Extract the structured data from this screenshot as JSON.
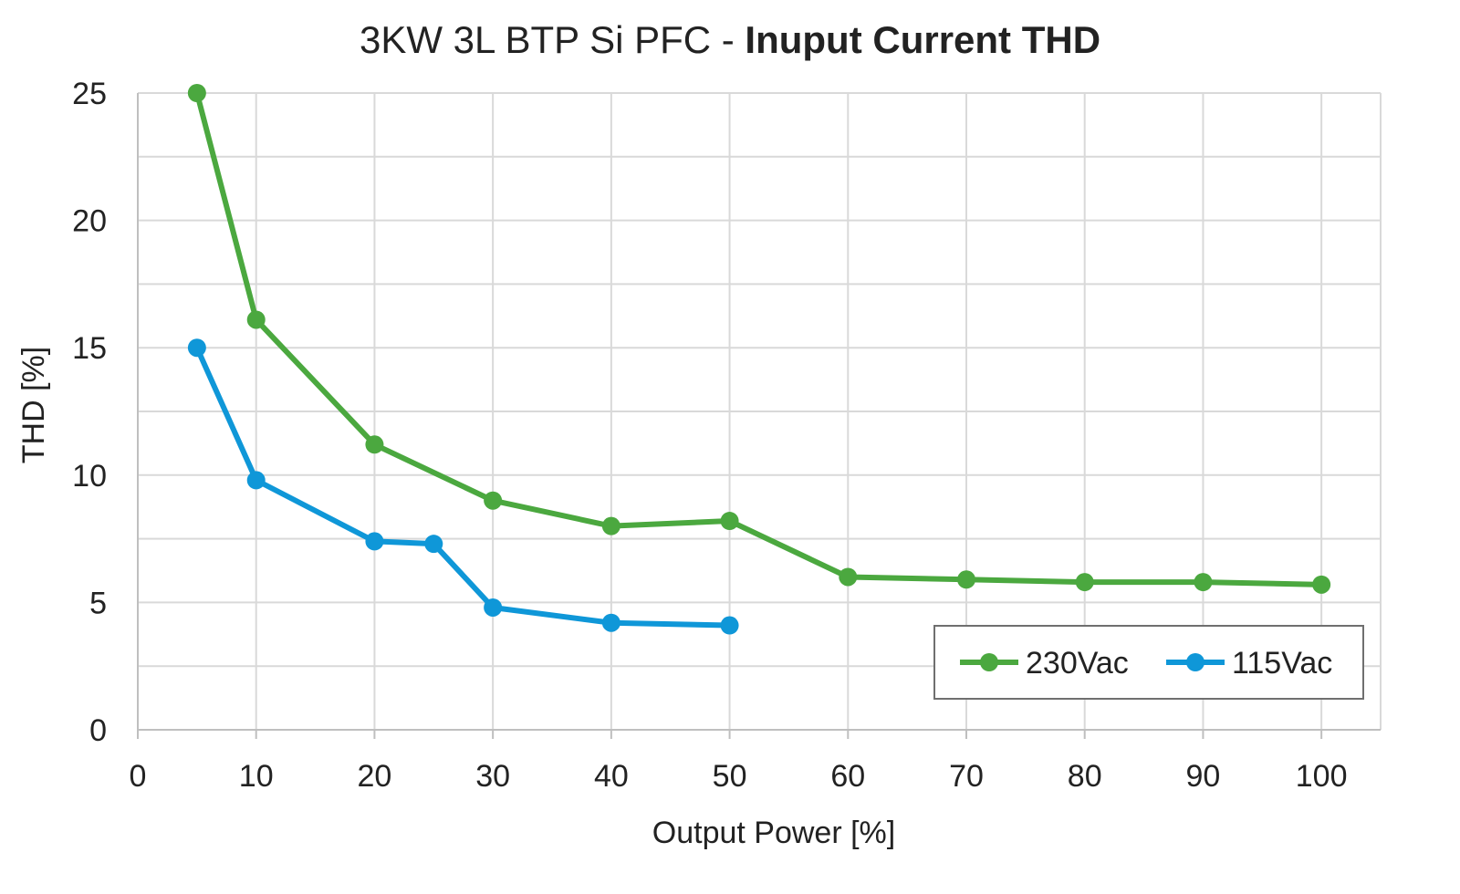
{
  "title": {
    "prefix": "3KW 3L BTP Si PFC - ",
    "main": "Inuput Current THD"
  },
  "chart_data": {
    "type": "line",
    "title": "3KW 3L BTP Si PFC - Inuput Current THD",
    "xlabel": "Output Power [%]",
    "ylabel": "THD [%]",
    "xlim": [
      0,
      105
    ],
    "ylim": [
      0,
      25
    ],
    "x_ticks": [
      0,
      10,
      20,
      30,
      40,
      50,
      60,
      70,
      80,
      90,
      100
    ],
    "y_ticks": [
      0,
      5,
      10,
      15,
      20,
      25
    ],
    "grid": true,
    "legend_position": "bottom-right",
    "series": [
      {
        "name": "230Vac",
        "color": "#4ba83f",
        "x": [
          5,
          10,
          20,
          30,
          40,
          50,
          60,
          70,
          80,
          90,
          100
        ],
        "y": [
          25.0,
          16.1,
          11.2,
          9.0,
          8.0,
          8.2,
          6.0,
          5.9,
          5.8,
          5.8,
          5.7
        ]
      },
      {
        "name": "115Vac",
        "color": "#0f97d8",
        "x": [
          5,
          10,
          20,
          25,
          30,
          40,
          50
        ],
        "y": [
          15.0,
          9.8,
          7.4,
          7.3,
          4.8,
          4.2,
          4.1
        ]
      }
    ]
  }
}
